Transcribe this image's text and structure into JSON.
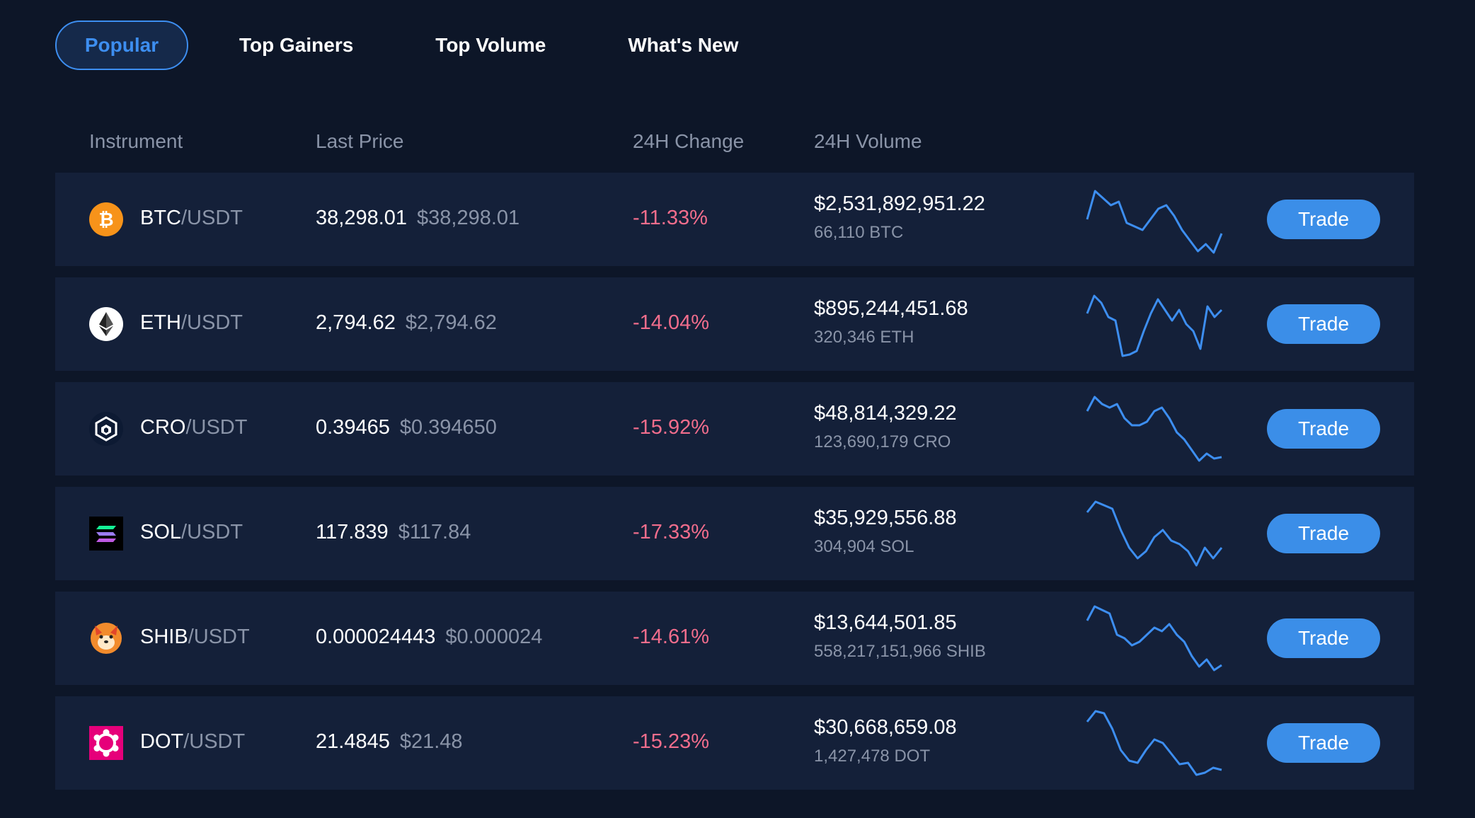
{
  "tabs": [
    {
      "label": "Popular",
      "active": true
    },
    {
      "label": "Top Gainers",
      "active": false
    },
    {
      "label": "Top Volume",
      "active": false
    },
    {
      "label": "What's New",
      "active": false
    }
  ],
  "table": {
    "headers": {
      "instrument": "Instrument",
      "last_price": "Last Price",
      "change": "24H Change",
      "volume": "24H Volume"
    },
    "rows": [
      {
        "base": "BTC",
        "quote": "/USDT",
        "last": "38,298.01",
        "usd": "$38,298.01",
        "change": "-11.33%",
        "volume_usd": "$2,531,892,951.22",
        "volume_base": "66,110 BTC",
        "trade": "Trade",
        "icon": "btc-icon",
        "spark": [
          0.5,
          0.1,
          0.2,
          0.3,
          0.25,
          0.55,
          0.6,
          0.65,
          0.5,
          0.35,
          0.3,
          0.45,
          0.65,
          0.8,
          0.95,
          0.85,
          0.97,
          0.7
        ]
      },
      {
        "base": "ETH",
        "quote": "/USDT",
        "last": "2,794.62",
        "usd": "$2,794.62",
        "change": "-14.04%",
        "volume_usd": "$895,244,451.68",
        "volume_base": "320,346 ETH",
        "trade": "Trade",
        "icon": "eth-icon",
        "spark": [
          0.35,
          0.1,
          0.2,
          0.4,
          0.45,
          0.95,
          0.93,
          0.88,
          0.6,
          0.35,
          0.15,
          0.3,
          0.45,
          0.3,
          0.5,
          0.6,
          0.85,
          0.25,
          0.4,
          0.3
        ]
      },
      {
        "base": "CRO",
        "quote": "/USDT",
        "last": "0.39465",
        "usd": "$0.394650",
        "change": "-15.92%",
        "volume_usd": "$48,814,329.22",
        "volume_base": "123,690,179 CRO",
        "trade": "Trade",
        "icon": "cro-icon",
        "spark": [
          0.25,
          0.05,
          0.15,
          0.2,
          0.15,
          0.35,
          0.45,
          0.45,
          0.4,
          0.25,
          0.2,
          0.35,
          0.55,
          0.65,
          0.8,
          0.95,
          0.85,
          0.92,
          0.9
        ]
      },
      {
        "base": "SOL",
        "quote": "/USDT",
        "last": "117.839",
        "usd": "$117.84",
        "change": "-17.33%",
        "volume_usd": "$35,929,556.88",
        "volume_base": "304,904 SOL",
        "trade": "Trade",
        "icon": "sol-icon",
        "spark": [
          0.2,
          0.05,
          0.1,
          0.15,
          0.45,
          0.7,
          0.85,
          0.75,
          0.55,
          0.45,
          0.6,
          0.65,
          0.75,
          0.95,
          0.7,
          0.85,
          0.7
        ]
      },
      {
        "base": "SHIB",
        "quote": "/USDT",
        "last": "0.000024443",
        "usd": "$0.000024",
        "change": "-14.61%",
        "volume_usd": "$13,644,501.85",
        "volume_base": "558,217,151,966 SHIB",
        "trade": "Trade",
        "icon": "shib-icon",
        "spark": [
          0.25,
          0.05,
          0.1,
          0.15,
          0.45,
          0.5,
          0.6,
          0.55,
          0.45,
          0.35,
          0.4,
          0.3,
          0.45,
          0.55,
          0.75,
          0.9,
          0.8,
          0.95,
          0.88
        ]
      },
      {
        "base": "DOT",
        "quote": "/USDT",
        "last": "21.4845",
        "usd": "$21.48",
        "change": "-15.23%",
        "volume_usd": "$30,668,659.08",
        "volume_base": "1,427,478 DOT",
        "trade": "Trade",
        "icon": "dot-icon",
        "spark": [
          0.2,
          0.05,
          0.08,
          0.3,
          0.6,
          0.75,
          0.78,
          0.6,
          0.45,
          0.5,
          0.65,
          0.8,
          0.78,
          0.95,
          0.92,
          0.85,
          0.88
        ]
      }
    ]
  },
  "colors": {
    "background": "#0d1628",
    "row_background": "#142039",
    "accent": "#3b8ee8",
    "negative": "#f16d8c",
    "muted": "#8a94a8"
  }
}
